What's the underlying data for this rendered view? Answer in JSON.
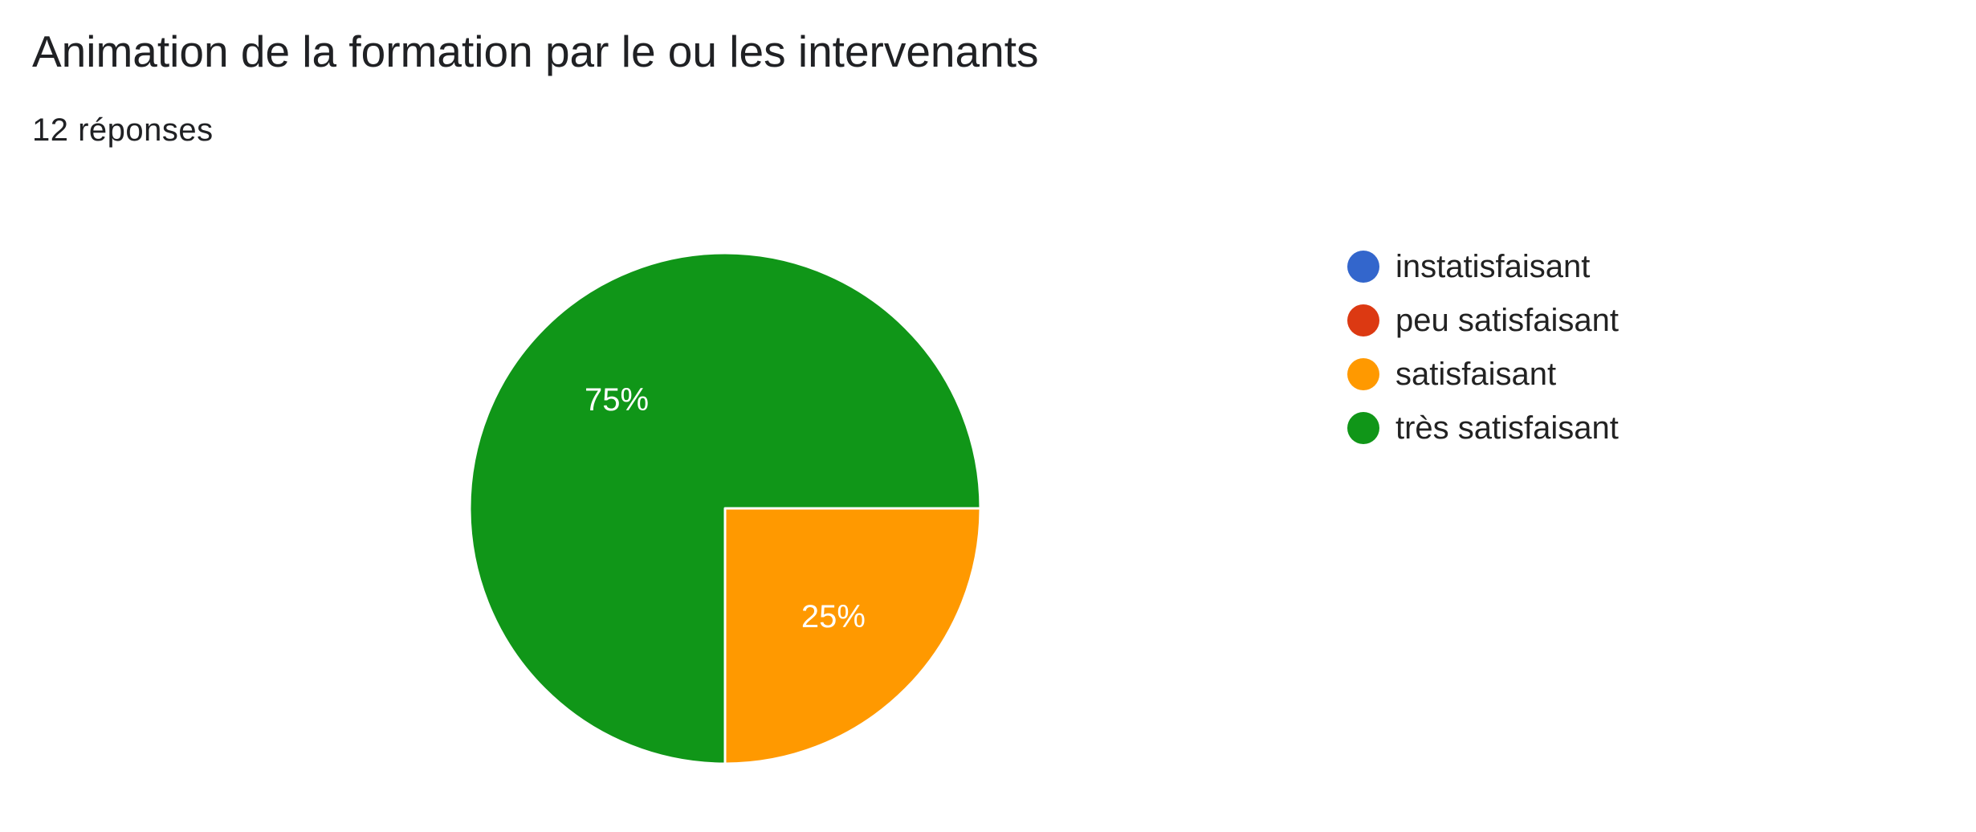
{
  "header": {
    "title": "Animation de la formation par le ou les intervenants",
    "responses": "12 réponses"
  },
  "chart_data": {
    "type": "pie",
    "title": "Animation de la formation par le ou les intervenants",
    "subtitle": "12 réponses",
    "total_responses": 12,
    "categories": [
      "instatisfaisant",
      "peu satisfaisant",
      "satisfaisant",
      "très satisfaisant"
    ],
    "values": [
      0,
      0,
      3,
      9
    ],
    "percentages": [
      0,
      0,
      25,
      75
    ],
    "slice_labels": [
      "",
      "",
      "25%",
      "75%"
    ],
    "colors": [
      "#3366cc",
      "#dc3912",
      "#ff9900",
      "#109618"
    ],
    "legend_position": "right",
    "start_angle": "90° (right), clockwise"
  }
}
